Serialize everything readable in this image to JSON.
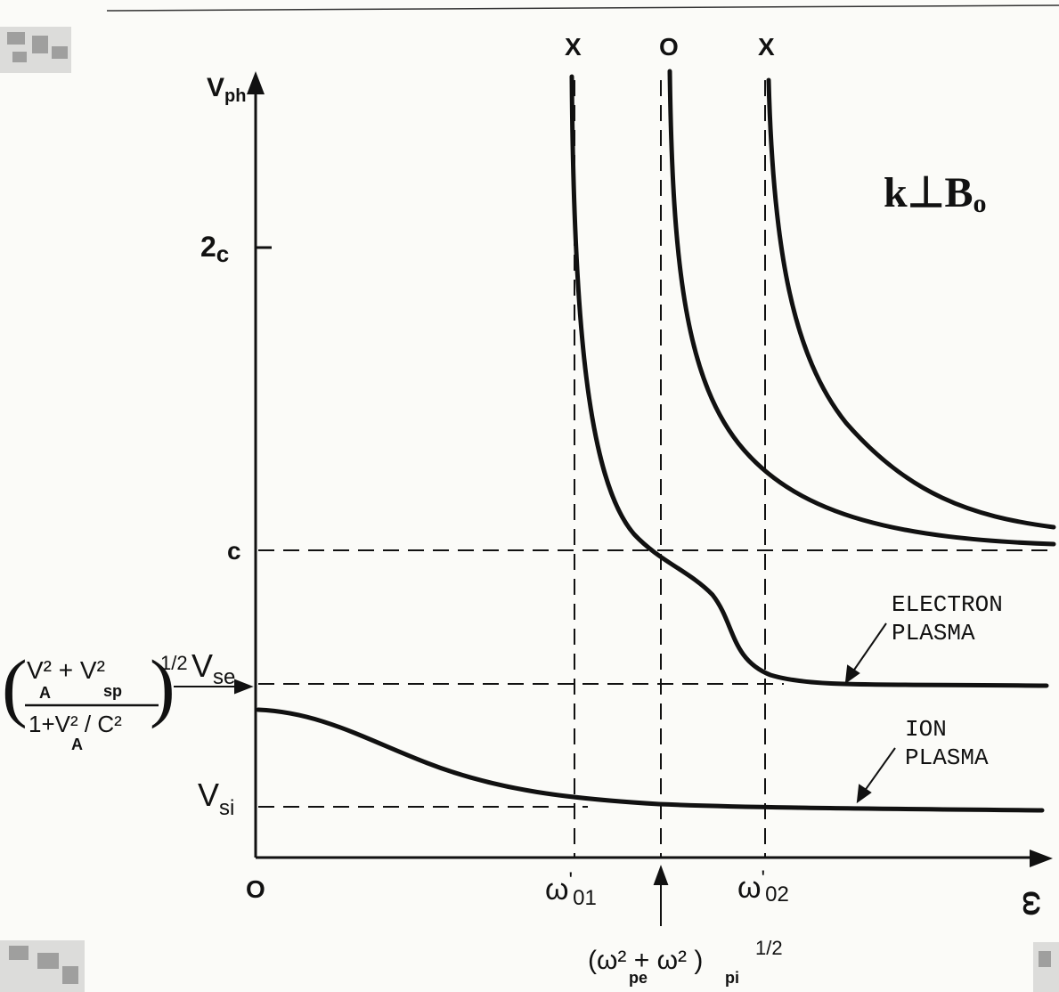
{
  "chart_data": {
    "type": "line",
    "title": "",
    "annotation_title": "k⊥B",
    "annotation_title_sub": "o",
    "ylabel": "V",
    "ylabel_sub": "ph",
    "xlabel": "ω",
    "origin_label": "O",
    "y_ticks": [
      {
        "key": "2c",
        "main": "2",
        "rest": "c"
      },
      {
        "key": "c",
        "main": "c",
        "rest": ""
      },
      {
        "key": "vse",
        "main": "V",
        "sub": "se"
      },
      {
        "key": "vsi",
        "main": "V",
        "sub": "si"
      }
    ],
    "x_ticks": [
      {
        "key": "w01",
        "main": "ω",
        "sup": "'",
        "sub": "01"
      },
      {
        "key": "w02",
        "main": "ω",
        "sup": "'",
        "sub": "02"
      }
    ],
    "mode_labels": [
      {
        "key": "x1",
        "text": "X"
      },
      {
        "key": "o",
        "text": "O"
      },
      {
        "key": "x2",
        "text": "X"
      }
    ],
    "left_annotation": {
      "numerator": "V² + V²",
      "num_sub_a": "A",
      "num_sub_b": "sp",
      "denominator": "1+V² / C²",
      "den_sub": "A",
      "exponent": "1/2"
    },
    "bottom_annotation": {
      "text": "(ω²  + ω² )",
      "sub_a": "pe",
      "sub_b": "pi",
      "exponent": "1/2"
    },
    "branch_labels": [
      {
        "key": "electron",
        "line1": "ELECTRON",
        "line2": "PLASMA"
      },
      {
        "key": "ion",
        "line1": "ION",
        "line2": "PLASMA"
      }
    ],
    "series": [
      {
        "name": "X (lower branch)"
      },
      {
        "name": "O"
      },
      {
        "name": "X (upper branch)"
      },
      {
        "name": "ELECTRON PLASMA"
      },
      {
        "name": "ION PLASMA"
      }
    ],
    "grid": false
  },
  "colors": {
    "ink": "#111111",
    "paper": "#fbfbf8"
  }
}
